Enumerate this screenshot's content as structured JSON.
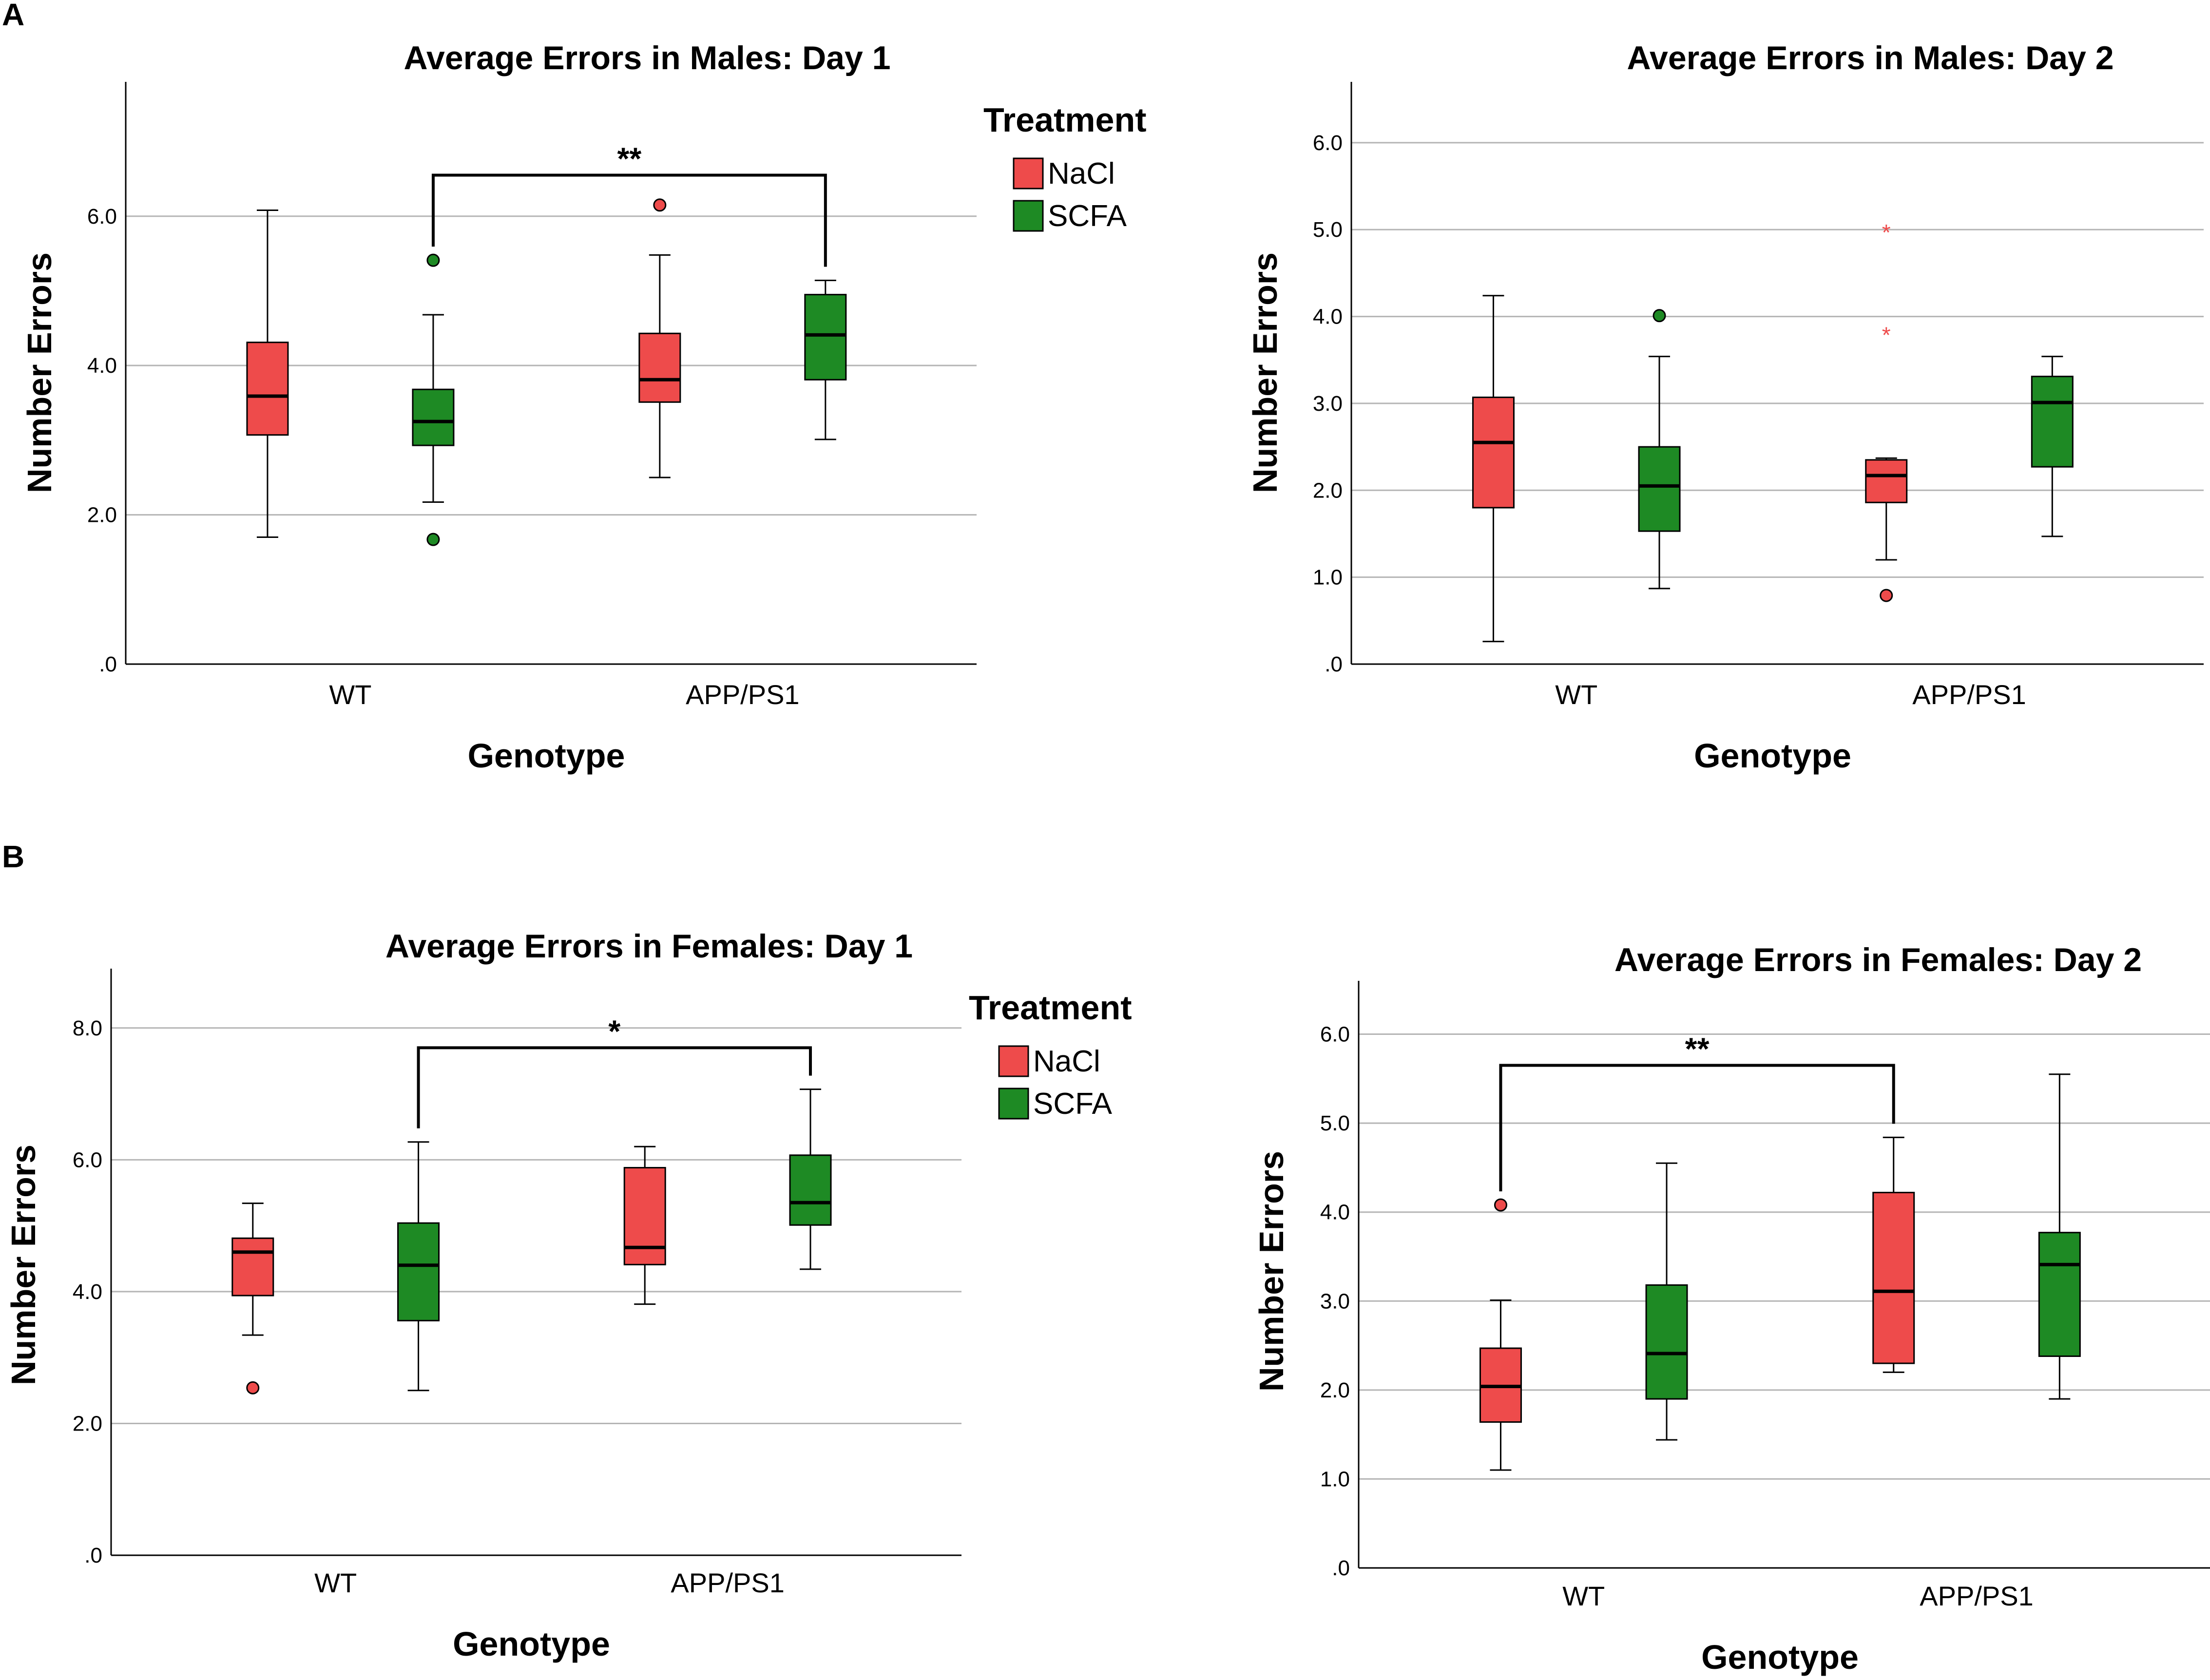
{
  "panels": [
    {
      "letter": "A"
    },
    {
      "letter": "B"
    }
  ],
  "legend_title": "Treatment",
  "colors": {
    "NaCl": "#ee4b4b",
    "SCFA": "#1e8a24",
    "grid": "#b5b5b5"
  },
  "chart_data": [
    {
      "type": "boxplot",
      "title": "Average Errors in Males: Day 1",
      "xlabel": "Genotype",
      "ylabel": "Number Errors",
      "ylim": [
        0,
        7.8
      ],
      "yticks": [
        0,
        2,
        4,
        6
      ],
      "ytick_labels": [
        ".0",
        "2.0",
        "4.0",
        "6.0"
      ],
      "categories": [
        "WT",
        "APP/PS1"
      ],
      "legend": {
        "title": "Treatment",
        "entries": [
          "NaCl",
          "SCFA"
        ],
        "placement": "right"
      },
      "boxes": [
        {
          "category": "WT",
          "treatment": "NaCl",
          "whisker_low": 1.7,
          "q1": 3.07,
          "median": 3.59,
          "q3": 4.31,
          "whisker_high": 6.08,
          "outliers": []
        },
        {
          "category": "WT",
          "treatment": "SCFA",
          "whisker_low": 2.17,
          "q1": 2.93,
          "median": 3.25,
          "q3": 3.68,
          "whisker_high": 4.68,
          "outliers": [
            5.41,
            1.67
          ]
        },
        {
          "category": "APP/PS1",
          "treatment": "NaCl",
          "whisker_low": 2.5,
          "q1": 3.51,
          "median": 3.81,
          "q3": 4.43,
          "whisker_high": 5.48,
          "outliers": [
            6.15
          ]
        },
        {
          "category": "APP/PS1",
          "treatment": "SCFA",
          "whisker_low": 3.01,
          "q1": 3.81,
          "median": 4.41,
          "q3": 4.95,
          "whisker_high": 5.14,
          "outliers": []
        }
      ],
      "extremes": [],
      "significance": [
        {
          "label": "**",
          "from": "WT SCFA",
          "to": "APP/PS1 SCFA",
          "y": 6.55
        }
      ]
    },
    {
      "type": "boxplot",
      "title": "Average Errors in Males: Day 2",
      "xlabel": "Genotype",
      "ylabel": "Number Errors",
      "ylim": [
        0,
        6.7
      ],
      "yticks": [
        0,
        1,
        2,
        3,
        4,
        5,
        6
      ],
      "ytick_labels": [
        ".0",
        "1.0",
        "2.0",
        "3.0",
        "4.0",
        "5.0",
        "6.0"
      ],
      "categories": [
        "WT",
        "APP/PS1"
      ],
      "boxes": [
        {
          "category": "WT",
          "treatment": "NaCl",
          "whisker_low": 0.26,
          "q1": 1.8,
          "median": 2.55,
          "q3": 3.07,
          "whisker_high": 4.24,
          "outliers": []
        },
        {
          "category": "WT",
          "treatment": "SCFA",
          "whisker_low": 0.87,
          "q1": 1.53,
          "median": 2.05,
          "q3": 2.5,
          "whisker_high": 3.54,
          "outliers": [
            4.01
          ]
        },
        {
          "category": "APP/PS1",
          "treatment": "NaCl",
          "whisker_low": 1.2,
          "q1": 1.86,
          "median": 2.17,
          "q3": 2.35,
          "whisker_high": 2.37,
          "outliers": [
            0.79
          ]
        },
        {
          "category": "APP/PS1",
          "treatment": "SCFA",
          "whisker_low": 1.47,
          "q1": 2.27,
          "median": 3.01,
          "q3": 3.31,
          "whisker_high": 3.54,
          "outliers": []
        }
      ],
      "extremes": [
        {
          "category": "APP/PS1",
          "treatment": "NaCl",
          "values": [
            5.0,
            3.82
          ]
        }
      ],
      "significance": []
    },
    {
      "type": "boxplot",
      "title": "Average Errors in Females: Day 1",
      "xlabel": "Genotype",
      "ylabel": "Number Errors",
      "ylim": [
        0,
        8.9
      ],
      "yticks": [
        0,
        2,
        4,
        6,
        8
      ],
      "ytick_labels": [
        ".0",
        "2.0",
        "4.0",
        "6.0",
        "8.0"
      ],
      "categories": [
        "WT",
        "APP/PS1"
      ],
      "legend": {
        "title": "Treatment",
        "entries": [
          "NaCl",
          "SCFA"
        ],
        "placement": "right"
      },
      "boxes": [
        {
          "category": "WT",
          "treatment": "NaCl",
          "whisker_low": 3.34,
          "q1": 3.94,
          "median": 4.6,
          "q3": 4.81,
          "whisker_high": 5.34,
          "outliers": [
            2.54
          ]
        },
        {
          "category": "WT",
          "treatment": "SCFA",
          "whisker_low": 2.5,
          "q1": 3.56,
          "median": 4.4,
          "q3": 5.04,
          "whisker_high": 6.27,
          "outliers": []
        },
        {
          "category": "APP/PS1",
          "treatment": "NaCl",
          "whisker_low": 3.81,
          "q1": 4.41,
          "median": 4.67,
          "q3": 5.88,
          "whisker_high": 6.2,
          "outliers": []
        },
        {
          "category": "APP/PS1",
          "treatment": "SCFA",
          "whisker_low": 4.34,
          "q1": 5.01,
          "median": 5.35,
          "q3": 6.07,
          "whisker_high": 7.07,
          "outliers": []
        }
      ],
      "extremes": [],
      "significance": [
        {
          "label": "*",
          "from": "WT SCFA",
          "to": "APP/PS1 SCFA",
          "y": 7.7
        }
      ]
    },
    {
      "type": "boxplot",
      "title": "Average Errors in Females: Day 2",
      "xlabel": "Genotype",
      "ylabel": "Number Errors",
      "ylim": [
        0,
        6.6
      ],
      "yticks": [
        0,
        1,
        2,
        3,
        4,
        5,
        6
      ],
      "ytick_labels": [
        ".0",
        "1.0",
        "2.0",
        "3.0",
        "4.0",
        "5.0",
        "6.0"
      ],
      "categories": [
        "WT",
        "APP/PS1"
      ],
      "boxes": [
        {
          "category": "WT",
          "treatment": "NaCl",
          "whisker_low": 1.1,
          "q1": 1.64,
          "median": 2.04,
          "q3": 2.47,
          "whisker_high": 3.01,
          "outliers": [
            4.08
          ]
        },
        {
          "category": "WT",
          "treatment": "SCFA",
          "whisker_low": 1.44,
          "q1": 1.9,
          "median": 2.41,
          "q3": 3.18,
          "whisker_high": 4.55,
          "outliers": []
        },
        {
          "category": "APP/PS1",
          "treatment": "NaCl",
          "whisker_low": 2.2,
          "q1": 2.3,
          "median": 3.11,
          "q3": 4.22,
          "whisker_high": 4.84,
          "outliers": []
        },
        {
          "category": "APP/PS1",
          "treatment": "SCFA",
          "whisker_low": 1.9,
          "q1": 2.38,
          "median": 3.41,
          "q3": 3.77,
          "whisker_high": 5.55,
          "outliers": []
        }
      ],
      "extremes": [],
      "significance": [
        {
          "label": "**",
          "from": "WT NaCl",
          "to": "APP/PS1 NaCl",
          "y": 5.65
        }
      ]
    }
  ]
}
